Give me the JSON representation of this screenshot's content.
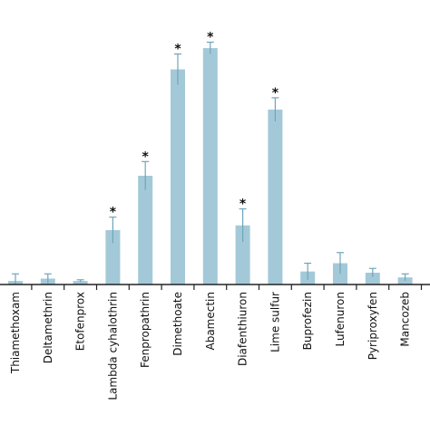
{
  "chart_data": {
    "type": "bar",
    "title": "",
    "xlabel": "",
    "ylabel": "",
    "categories": [
      "Thiamethoxam",
      "Deltamethrin",
      "Etofenprox",
      "Lambda cyhalothrin",
      "Fenpropathrin",
      "Dimethoate",
      "Abamectin",
      "Diafenthiuron",
      "Lime sulfur",
      "Buprofezin",
      "Lufenuron",
      "Pyriproxyfen",
      "Mancozeb"
    ],
    "values": [
      1.5,
      2.5,
      1.5,
      23,
      46,
      91,
      100,
      25,
      74,
      5.5,
      9,
      5,
      3
    ],
    "errors": [
      3,
      2,
      0.5,
      5.5,
      6,
      6.5,
      2.5,
      7,
      5,
      3.5,
      4.5,
      1.8,
      1.5
    ],
    "significant": [
      false,
      false,
      false,
      true,
      true,
      true,
      true,
      true,
      true,
      false,
      false,
      false,
      false
    ],
    "significance_marker": "*",
    "ylim": [
      0,
      110
    ],
    "grid": false,
    "legend": "none",
    "colors": {
      "bar": "#a3c9d8",
      "error_bar": "#6fa5bb",
      "axis": "#222222",
      "text": "#111111"
    }
  }
}
